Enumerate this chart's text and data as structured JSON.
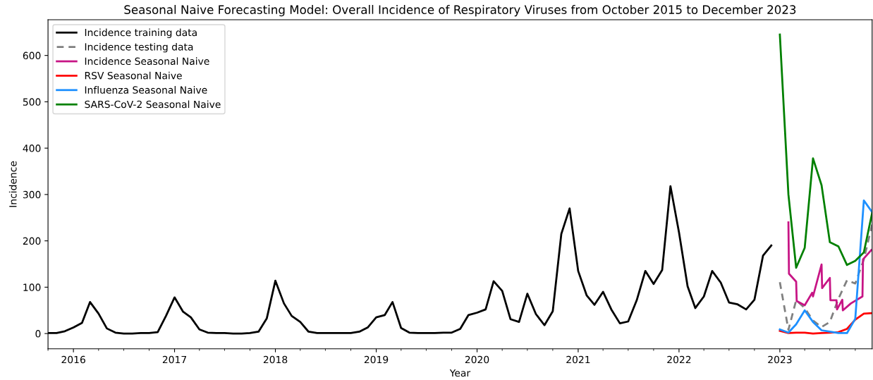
{
  "chart_data": {
    "type": "line",
    "title": "Seasonal Naive Forecasting Model: Overall Incidence of Respiratory Viruses from October 2015 to December 2023",
    "xlabel": "Year",
    "ylabel": "Incidence",
    "xlim": [
      "2015-10-01",
      "2023-12-01"
    ],
    "ylim": [
      -33,
      677
    ],
    "xticks": [
      {
        "value": "2016-01-01",
        "label": "2016"
      },
      {
        "value": "2017-01-01",
        "label": "2017"
      },
      {
        "value": "2018-01-01",
        "label": "2018"
      },
      {
        "value": "2019-01-01",
        "label": "2019"
      },
      {
        "value": "2020-01-01",
        "label": "2020"
      },
      {
        "value": "2021-01-01",
        "label": "2021"
      },
      {
        "value": "2022-01-01",
        "label": "2022"
      },
      {
        "value": "2023-01-01",
        "label": "2023"
      }
    ],
    "yticks": [
      0,
      100,
      200,
      300,
      400,
      500,
      600
    ],
    "grid": false,
    "legend": "top left",
    "series": [
      {
        "name": "Incidence training data",
        "color": "#000000",
        "line_style": "solid",
        "x": [
          "2015-10",
          "2015-11",
          "2015-12",
          "2016-01",
          "2016-02",
          "2016-03",
          "2016-04",
          "2016-05",
          "2016-06",
          "2016-07",
          "2016-08",
          "2016-09",
          "2016-10",
          "2016-11",
          "2016-12",
          "2017-01",
          "2017-02",
          "2017-03",
          "2017-04",
          "2017-05",
          "2017-06",
          "2017-07",
          "2017-08",
          "2017-09",
          "2017-10",
          "2017-11",
          "2017-12",
          "2018-01",
          "2018-02",
          "2018-03",
          "2018-04",
          "2018-05",
          "2018-06",
          "2018-07",
          "2018-08",
          "2018-09",
          "2018-10",
          "2018-11",
          "2018-12",
          "2019-01",
          "2019-02",
          "2019-03",
          "2019-04",
          "2019-05",
          "2019-06",
          "2019-07",
          "2019-08",
          "2019-09",
          "2019-10",
          "2019-11",
          "2019-12",
          "2020-01",
          "2020-02",
          "2020-03",
          "2020-04",
          "2020-05",
          "2020-06",
          "2020-07",
          "2020-08",
          "2020-09",
          "2020-10",
          "2020-11",
          "2020-12",
          "2021-01",
          "2021-02",
          "2021-03",
          "2021-04",
          "2021-05",
          "2021-06",
          "2021-07",
          "2021-08",
          "2021-09",
          "2021-10",
          "2021-11",
          "2021-12",
          "2022-01",
          "2022-02",
          "2022-03",
          "2022-04",
          "2022-05",
          "2022-06",
          "2022-07",
          "2022-08",
          "2022-09",
          "2022-10",
          "2022-11",
          "2022-12"
        ],
        "values": [
          1,
          1,
          5,
          13,
          23,
          68,
          43,
          11,
          2,
          0,
          0,
          1,
          1,
          3,
          38,
          78,
          47,
          35,
          9,
          2,
          1,
          1,
          0,
          0,
          1,
          4,
          33,
          114,
          65,
          38,
          25,
          4,
          1,
          1,
          1,
          1,
          1,
          4,
          13,
          35,
          40,
          68,
          12,
          2,
          1,
          1,
          1,
          2,
          2,
          10,
          40,
          45,
          52,
          113,
          92,
          31,
          25,
          86,
          42,
          18,
          48,
          215,
          270,
          135,
          82,
          62,
          90,
          52,
          22,
          26,
          72,
          135,
          107,
          137,
          318,
          218,
          102,
          55,
          80,
          135,
          110,
          67,
          63,
          52,
          73,
          168,
          190
        ]
      },
      {
        "name": "Incidence testing data",
        "color": "#808080",
        "line_style": "dashed",
        "x": [
          "2023-01",
          "2023-02",
          "2023-03",
          "2023-04",
          "2023-05",
          "2023-06",
          "2023-07",
          "2023-08",
          "2023-09",
          "2023-10",
          "2023-11",
          "2023-12"
        ],
        "values": [
          111,
          8,
          72,
          55,
          28,
          14,
          25,
          75,
          115,
          108,
          160,
          235
        ]
      },
      {
        "name": "Incidence Seasonal Naive",
        "color": "#c71585",
        "line_style": "solid",
        "x": [
          "2023-02-01",
          "2023-02-03",
          "2023-03-01",
          "2023-03-03",
          "2023-04-01",
          "2023-04-28",
          "2023-05-01",
          "2023-06-01",
          "2023-06-03",
          "2023-07-01",
          "2023-07-03",
          "2023-07-25",
          "2023-07-27",
          "2023-08-15",
          "2023-08-17",
          "2023-09-15",
          "2023-10-27",
          "2023-10-29",
          "2023-11-28"
        ],
        "values": [
          240,
          129,
          112,
          70,
          61,
          88,
          80,
          149,
          98,
          120,
          72,
          72,
          52,
          73,
          50,
          65,
          80,
          160,
          180
        ]
      },
      {
        "name": "RSV Seasonal Naive",
        "color": "#ff0000",
        "line_style": "solid",
        "x": [
          "2023-01",
          "2023-02",
          "2023-03",
          "2023-04",
          "2023-05",
          "2023-06",
          "2023-07",
          "2023-08",
          "2023-09",
          "2023-10",
          "2023-11",
          "2023-12"
        ],
        "values": [
          6,
          1,
          2,
          2,
          0,
          1,
          2,
          3,
          10,
          30,
          43,
          44
        ]
      },
      {
        "name": "Influenza Seasonal Naive",
        "color": "#1e90ff",
        "line_style": "solid",
        "x": [
          "2023-01",
          "2023-02",
          "2023-03",
          "2023-04",
          "2023-05",
          "2023-06",
          "2023-07",
          "2023-08",
          "2023-09",
          "2023-10",
          "2023-11",
          "2023-12"
        ],
        "values": [
          9,
          2,
          20,
          50,
          25,
          7,
          4,
          1,
          1,
          32,
          287,
          262
        ]
      },
      {
        "name": "SARS-CoV-2 Seasonal Naive",
        "color": "#008000",
        "line_style": "solid",
        "x": [
          "2023-01",
          "2023-02",
          "2023-03",
          "2023-04",
          "2023-05",
          "2023-06",
          "2023-07",
          "2023-08",
          "2023-09",
          "2023-10",
          "2023-11",
          "2023-12"
        ],
        "values": [
          645,
          300,
          142,
          185,
          378,
          320,
          197,
          188,
          148,
          157,
          175,
          260
        ]
      }
    ]
  }
}
